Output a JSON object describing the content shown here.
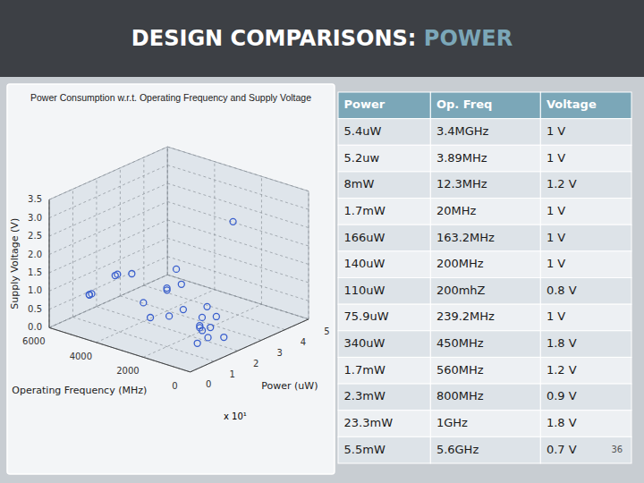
{
  "page": {
    "title": [
      "DESIGN COMPARISONS: ",
      "POWER"
    ],
    "colors": [
      "#ffffff",
      "#7ba7b8"
    ],
    "background": "#c8cdd2",
    "title_background": "#3d4045"
  },
  "chart_data": {
    "type": "scatter3d",
    "title": "Power Consumption w.r.t. Operating Frequency and Supply Voltage",
    "x_label": "Operating Frequency (MHz)",
    "y_label": "Power (uW)",
    "z_label": "Supply Voltage (V)",
    "annotation": "x 10¹",
    "x": [
      5800,
      5200,
      4800,
      4500,
      4200,
      3900,
      3600,
      3000,
      2500,
      2200,
      2000,
      1800,
      1600,
      1400,
      1200,
      1000,
      800,
      600,
      400,
      300,
      200,
      150,
      100,
      80,
      50
    ],
    "y": [
      1.5,
      1.0,
      0.5,
      2.0,
      1.0,
      3.5,
      0.5,
      1.0,
      1.5,
      0.5,
      1.0,
      2.5,
      1.0,
      0.5,
      3.0,
      1.5,
      0.5,
      1.0,
      1.5,
      0.8,
      0.5,
      1.0,
      0.5,
      1.5,
      0.8
    ],
    "z": [
      0.5,
      0.8,
      1.0,
      1.2,
      1.5,
      0.6,
      1.8,
      1.0,
      1.3,
      0.9,
      1.6,
      0.7,
      2.2,
      1.1,
      3.0,
      0.5,
      1.4,
      0.8,
      1.0,
      1.2,
      0.6,
      0.9,
      1.1,
      0.5,
      0.7
    ],
    "color": "#3a5fcd",
    "marker": "circle",
    "grid": true,
    "xlim": [
      6000,
      0
    ],
    "xticks": [
      6000,
      4000,
      2000,
      0
    ],
    "ylim": [
      0,
      5
    ],
    "yticks": [
      0,
      1,
      2,
      3,
      4,
      5
    ],
    "zlim": [
      0,
      3.5
    ],
    "zticks": [
      {
        "value": 0,
        "label": "0.0"
      },
      0.5,
      {
        "value": 1,
        "label": "1.0"
      },
      1.5,
      {
        "value": 2,
        "label": "2.0"
      },
      2.5,
      {
        "value": 3,
        "label": "3.0"
      },
      3.5
    ]
  },
  "table": {
    "header": [
      "Power",
      "Op. Freq",
      "Voltage"
    ],
    "rows": [
      [
        "5.4uW",
        "3.4MGHz",
        "1 V"
      ],
      [
        "5.2uw",
        "3.89MHz",
        "1 V"
      ],
      [
        "8mW",
        "12.3MHz",
        "1.2 V"
      ],
      [
        "1.7mW",
        "20MHz",
        "1 V"
      ],
      [
        "166uW",
        "163.2MHz",
        "1 V"
      ],
      [
        "140uW",
        "200MHz",
        "1 V"
      ],
      [
        "110uW",
        "200mhZ",
        "0.8 V"
      ],
      [
        "75.9uW",
        "239.2MHz",
        "1 V"
      ],
      [
        "340uW",
        "450MHz",
        "1.8 V"
      ],
      [
        "1.7mW",
        "560MHz",
        "1.2 V"
      ],
      [
        "2.3mW",
        "800MHz",
        "0.9 V"
      ],
      [
        "23.3mW",
        "1GHz",
        "1.8 V"
      ],
      [
        "5.5mW",
        "5.6GHz",
        "0.7 V"
      ]
    ],
    "page_number": "36",
    "header_color": "#7ba7b8",
    "header_text_color": "#ffffff",
    "row_colors": [
      "#dde3e8",
      "#edf0f3"
    ]
  }
}
